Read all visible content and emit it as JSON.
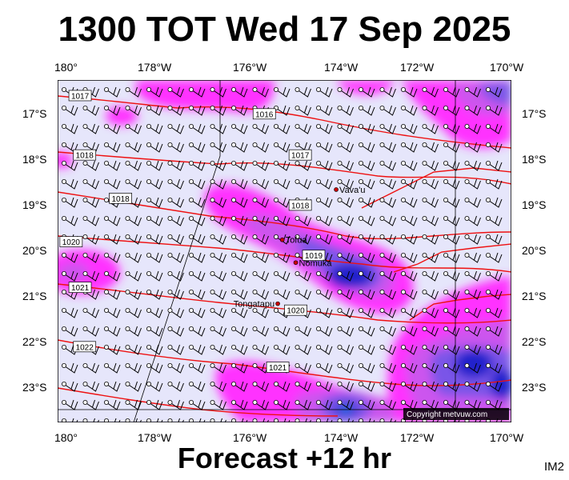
{
  "title": "1300 TOT Wed 17 Sep 2025",
  "footer": "Forecast +12 hr",
  "code": "IM2",
  "copyright": "Copyright metvuw.com",
  "lon_labels": [
    "180°",
    "178°W",
    "176°W",
    "174°W",
    "172°W",
    "170°W"
  ],
  "lat_labels": [
    "17°S",
    "18°S",
    "19°S",
    "20°S",
    "21°S",
    "22°S",
    "23°S"
  ],
  "places": [
    {
      "name": "Vava'u",
      "lon": -173.9,
      "lat": -18.65
    },
    {
      "name": "Tofua",
      "lon": -175.1,
      "lat": -19.75
    },
    {
      "name": "Nomuka",
      "lon": -174.8,
      "lat": -20.25
    },
    {
      "name": "Tongatapu",
      "lon": -175.2,
      "lat": -21.15
    }
  ],
  "isobars": [
    {
      "label": "1017",
      "lon": -179.6,
      "lat": -16.6
    },
    {
      "label": "1016",
      "lon": -175.5,
      "lat": -17.0
    },
    {
      "label": "1018",
      "lon": -179.5,
      "lat": -17.9
    },
    {
      "label": "1017",
      "lon": -174.7,
      "lat": -17.9
    },
    {
      "label": "1018",
      "lon": -178.7,
      "lat": -18.85
    },
    {
      "label": "1018",
      "lon": -174.7,
      "lat": -19.0
    },
    {
      "label": "1019",
      "lon": -174.4,
      "lat": -20.1
    },
    {
      "label": "1020",
      "lon": -179.8,
      "lat": -19.8
    },
    {
      "label": "1021",
      "lon": -179.6,
      "lat": -20.8
    },
    {
      "label": "1020",
      "lon": -174.8,
      "lat": -21.3
    },
    {
      "label": "1022",
      "lon": -179.5,
      "lat": -22.1
    },
    {
      "label": "1021",
      "lon": -175.2,
      "lat": -22.55
    }
  ],
  "colors": {
    "background": "#e6e6fb",
    "precip_light": "#ff33ff",
    "precip_mid": "#cc55ee",
    "precip_heavy": "#7a55e8",
    "precip_core": "#2222cc",
    "isobar": "#ee1111",
    "barb": "#000000",
    "dateline": "#000000"
  }
}
